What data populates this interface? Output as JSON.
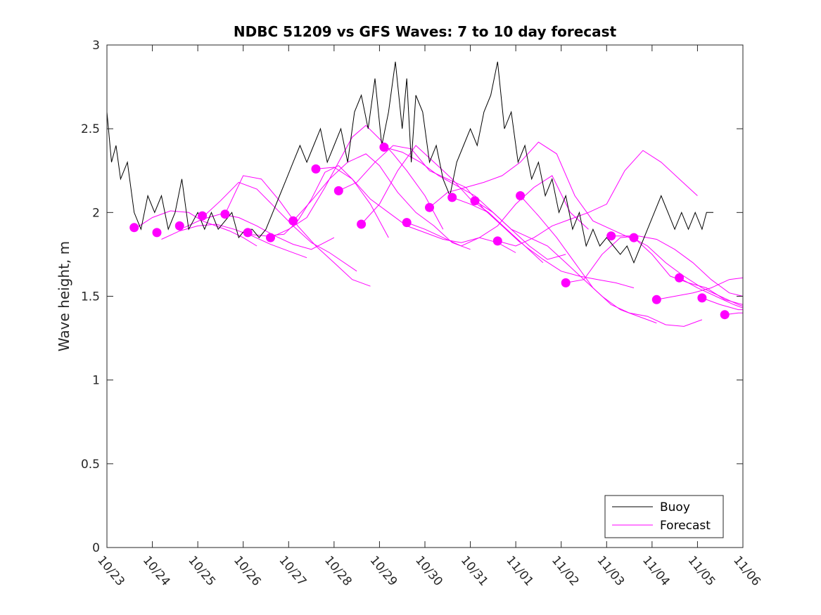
{
  "chart_data": {
    "type": "line",
    "title": "NDBC 51209 vs GFS Waves: 7 to 10 day forecast",
    "xlabel": "",
    "ylabel": "Wave height, m",
    "xlim": [
      0,
      14
    ],
    "ylim": [
      0,
      3
    ],
    "x_tick_labels": [
      "10/23",
      "10/24",
      "10/25",
      "10/26",
      "10/27",
      "10/28",
      "10/29",
      "10/30",
      "10/31",
      "11/01",
      "11/02",
      "11/03",
      "11/04",
      "11/05",
      "11/06"
    ],
    "y_ticks": [
      0,
      0.5,
      1,
      1.5,
      2,
      2.5,
      3
    ],
    "y_tick_labels": [
      "0",
      "0.5",
      "1",
      "1.5",
      "2",
      "2.5",
      "3"
    ],
    "colors": {
      "buoy": "#000000",
      "forecast": "#ff00ff"
    },
    "legend": {
      "position": "bottom-right",
      "entries": [
        "Buoy",
        "Forecast"
      ]
    },
    "series": [
      {
        "name": "Buoy",
        "x": [
          0,
          0.1,
          0.2,
          0.3,
          0.45,
          0.6,
          0.75,
          0.9,
          1.05,
          1.2,
          1.35,
          1.5,
          1.65,
          1.8,
          2.0,
          2.15,
          2.3,
          2.45,
          2.6,
          2.75,
          2.9,
          3.05,
          3.2,
          3.35,
          3.5,
          3.65,
          3.8,
          3.95,
          4.1,
          4.25,
          4.4,
          4.55,
          4.7,
          4.85,
          5.0,
          5.15,
          5.3,
          5.45,
          5.6,
          5.75,
          5.9,
          6.05,
          6.2,
          6.35,
          6.5,
          6.6,
          6.7,
          6.8,
          6.95,
          7.1,
          7.25,
          7.4,
          7.55,
          7.7,
          7.85,
          8.0,
          8.15,
          8.3,
          8.45,
          8.6,
          8.75,
          8.9,
          9.05,
          9.2,
          9.35,
          9.5,
          9.65,
          9.8,
          9.95,
          10.1,
          10.25,
          10.4,
          10.55,
          10.7,
          10.85,
          11.0,
          11.15,
          11.3,
          11.45,
          11.6,
          11.75,
          11.9,
          12.05,
          12.2,
          12.35,
          12.5,
          12.65,
          12.8,
          12.95,
          13.1,
          13.2,
          13.35
        ],
        "y": [
          2.6,
          2.3,
          2.4,
          2.2,
          2.3,
          2.0,
          1.9,
          2.1,
          2.0,
          2.1,
          1.9,
          2.0,
          2.2,
          1.9,
          2.0,
          1.9,
          2.0,
          1.9,
          1.95,
          2.0,
          1.85,
          1.9,
          1.9,
          1.85,
          1.9,
          2.0,
          2.1,
          2.2,
          2.3,
          2.4,
          2.3,
          2.4,
          2.5,
          2.3,
          2.4,
          2.5,
          2.3,
          2.6,
          2.7,
          2.5,
          2.8,
          2.4,
          2.6,
          2.9,
          2.5,
          2.8,
          2.3,
          2.7,
          2.6,
          2.3,
          2.4,
          2.2,
          2.1,
          2.3,
          2.4,
          2.5,
          2.4,
          2.6,
          2.7,
          2.9,
          2.5,
          2.6,
          2.3,
          2.4,
          2.2,
          2.3,
          2.1,
          2.2,
          2.0,
          2.1,
          1.9,
          2.0,
          1.8,
          1.9,
          1.8,
          1.85,
          1.8,
          1.75,
          1.8,
          1.7,
          1.8,
          1.9,
          2.0,
          2.1,
          2.0,
          1.9,
          2.0,
          1.9,
          2.0,
          1.9,
          2.0,
          2.0
        ]
      },
      {
        "name": "Forecast",
        "lines": [
          {
            "x": [
              0.6,
              1.0,
              1.4,
              1.8,
              2.1,
              2.4,
              2.7,
              3.0,
              3.3
            ],
            "y": [
              1.9,
              1.97,
              2.01,
              2.0,
              1.95,
              1.92,
              1.89,
              1.85,
              1.8
            ]
          },
          {
            "x": [
              1.2,
              1.6,
              2.0,
              2.4,
              2.8,
              3.2,
              3.6,
              4.0,
              4.4
            ],
            "y": [
              1.84,
              1.89,
              1.92,
              1.93,
              1.9,
              1.86,
              1.81,
              1.77,
              1.73
            ]
          },
          {
            "x": [
              1.7,
              2.1,
              2.5,
              2.9,
              3.3,
              3.7,
              4.1,
              4.5,
              5.0
            ],
            "y": [
              1.91,
              1.96,
              1.99,
              1.97,
              1.92,
              1.86,
              1.81,
              1.78,
              1.85
            ]
          },
          {
            "x": [
              2.1,
              2.5,
              2.9,
              3.3,
              3.7,
              4.1,
              4.5,
              4.9,
              5.5
            ],
            "y": [
              1.97,
              2.07,
              2.18,
              2.14,
              2.03,
              1.92,
              1.82,
              1.76,
              1.65
            ]
          },
          {
            "x": [
              2.6,
              3.0,
              3.4,
              3.8,
              4.2,
              4.6,
              5.0,
              5.4,
              5.8
            ],
            "y": [
              1.99,
              2.22,
              2.2,
              2.07,
              1.92,
              1.8,
              1.7,
              1.6,
              1.56
            ]
          },
          {
            "x": [
              3.1,
              3.5,
              3.9,
              4.2,
              4.5,
              4.8,
              5.1,
              5.4,
              5.8,
              6.2
            ],
            "y": [
              1.87,
              1.86,
              1.87,
              1.95,
              2.08,
              2.24,
              2.28,
              2.2,
              2.05,
              1.85
            ]
          },
          {
            "x": [
              3.6,
              4.0,
              4.4,
              4.8,
              5.1,
              5.4,
              5.7,
              6.0,
              6.3,
              6.6,
              7.0,
              7.4
            ],
            "y": [
              1.85,
              1.9,
              1.97,
              2.15,
              2.3,
              2.45,
              2.52,
              2.44,
              2.35,
              2.25,
              2.1,
              1.9
            ]
          },
          {
            "x": [
              4.1,
              4.5,
              4.9,
              5.3,
              5.7,
              6.0,
              6.4,
              6.8,
              7.2,
              7.6,
              8.0
            ],
            "y": [
              1.95,
              2.07,
              2.2,
              2.3,
              2.35,
              2.28,
              2.12,
              2.0,
              1.92,
              1.82,
              1.78
            ]
          },
          {
            "x": [
              4.6,
              5.0,
              5.4,
              5.8,
              6.2,
              6.6,
              7.0,
              7.4,
              7.8,
              8.2,
              8.6,
              9.0
            ],
            "y": [
              2.26,
              2.27,
              2.2,
              2.08,
              2.0,
              1.92,
              1.88,
              1.84,
              1.82,
              1.85,
              1.82,
              1.76
            ]
          },
          {
            "x": [
              5.1,
              5.5,
              5.9,
              6.3,
              6.7,
              7.1,
              7.5,
              7.9,
              8.3,
              8.7,
              9.1
            ],
            "y": [
              2.13,
              2.18,
              2.3,
              2.4,
              2.38,
              2.25,
              2.2,
              2.15,
              2.02,
              1.92,
              1.82
            ]
          },
          {
            "x": [
              5.6,
              6.0,
              6.4,
              6.8,
              7.2,
              7.6,
              8.0,
              8.4,
              8.8,
              9.2,
              9.6
            ],
            "y": [
              1.93,
              2.05,
              2.25,
              2.4,
              2.3,
              2.2,
              2.08,
              2.0,
              1.9,
              1.8,
              1.7
            ]
          },
          {
            "x": [
              6.1,
              6.5,
              6.9,
              7.3,
              7.7,
              8.1,
              8.5,
              8.9,
              9.3,
              9.7,
              10.1
            ],
            "y": [
              2.39,
              2.36,
              2.3,
              2.22,
              2.16,
              2.1,
              2.0,
              1.9,
              1.8,
              1.72,
              1.75
            ]
          },
          {
            "x": [
              6.6,
              7.0,
              7.4,
              7.8,
              8.2,
              8.6,
              9.0,
              9.4,
              9.8,
              10.2,
              10.6
            ],
            "y": [
              1.94,
              1.9,
              1.85,
              1.8,
              1.85,
              1.92,
              2.05,
              2.15,
              2.22,
              2.0,
              1.9
            ]
          },
          {
            "x": [
              7.1,
              7.5,
              7.9,
              8.3,
              8.7,
              9.1,
              9.5,
              9.9,
              10.3,
              10.7,
              11.1,
              11.5
            ],
            "y": [
              2.03,
              2.12,
              2.15,
              2.18,
              2.22,
              2.3,
              2.42,
              2.35,
              2.1,
              1.95,
              1.9,
              1.85
            ]
          },
          {
            "x": [
              7.6,
              8.0,
              8.4,
              8.8,
              9.2,
              9.6,
              10.0,
              10.4,
              10.8,
              11.2,
              11.6
            ],
            "y": [
              2.09,
              2.05,
              2.0,
              1.9,
              1.8,
              1.72,
              1.65,
              1.62,
              1.6,
              1.58,
              1.55
            ]
          },
          {
            "x": [
              8.1,
              8.5,
              8.9,
              9.3,
              9.7,
              10.1,
              10.5,
              10.9,
              11.3,
              11.7,
              12.1
            ],
            "y": [
              2.07,
              2.0,
              1.9,
              1.85,
              1.8,
              1.7,
              1.6,
              1.5,
              1.42,
              1.38,
              1.34
            ]
          },
          {
            "x": [
              8.6,
              9.0,
              9.4,
              9.8,
              10.2,
              10.6,
              11.0,
              11.4,
              11.8,
              12.2,
              12.6,
              13.0
            ],
            "y": [
              1.83,
              1.8,
              1.85,
              1.92,
              1.96,
              2.0,
              2.05,
              2.25,
              2.37,
              2.3,
              2.2,
              2.1
            ]
          },
          {
            "x": [
              9.1,
              9.5,
              9.9,
              10.3,
              10.7,
              11.1,
              11.5,
              11.9,
              12.3,
              12.7,
              13.1
            ],
            "y": [
              2.1,
              1.98,
              1.85,
              1.7,
              1.55,
              1.45,
              1.4,
              1.38,
              1.33,
              1.32,
              1.36
            ]
          },
          {
            "x": [
              10.1,
              10.5,
              10.9,
              11.3,
              11.7,
              12.1,
              12.5,
              12.9,
              13.3,
              13.7,
              14.0
            ],
            "y": [
              1.58,
              1.6,
              1.75,
              1.85,
              1.86,
              1.84,
              1.78,
              1.7,
              1.6,
              1.52,
              1.5
            ]
          },
          {
            "x": [
              11.1,
              11.5,
              11.9,
              12.3,
              12.7,
              13.1,
              13.5,
              13.9,
              14.0
            ],
            "y": [
              1.86,
              1.86,
              1.8,
              1.7,
              1.62,
              1.55,
              1.5,
              1.45,
              1.44
            ]
          },
          {
            "x": [
              11.6,
              12.0,
              12.4,
              12.8,
              13.2,
              13.6,
              14.0
            ],
            "y": [
              1.85,
              1.75,
              1.62,
              1.58,
              1.55,
              1.48,
              1.45
            ]
          },
          {
            "x": [
              12.1,
              12.5,
              12.9,
              13.3,
              13.7,
              14.0
            ],
            "y": [
              1.48,
              1.5,
              1.52,
              1.55,
              1.6,
              1.61
            ]
          },
          {
            "x": [
              12.6,
              13.0,
              13.4,
              13.8,
              14.0
            ],
            "y": [
              1.61,
              1.55,
              1.5,
              1.45,
              1.43
            ]
          },
          {
            "x": [
              13.1,
              13.5,
              13.9,
              14.0
            ],
            "y": [
              1.49,
              1.45,
              1.42,
              1.42
            ]
          },
          {
            "x": [
              13.6,
              13.9,
              14.0
            ],
            "y": [
              1.39,
              1.4,
              1.4
            ]
          }
        ],
        "markers": [
          {
            "x": 0.6,
            "y": 1.91
          },
          {
            "x": 1.1,
            "y": 1.88
          },
          {
            "x": 1.6,
            "y": 1.92
          },
          {
            "x": 2.1,
            "y": 1.98
          },
          {
            "x": 2.6,
            "y": 1.99
          },
          {
            "x": 3.1,
            "y": 1.88
          },
          {
            "x": 3.6,
            "y": 1.85
          },
          {
            "x": 4.1,
            "y": 1.95
          },
          {
            "x": 4.6,
            "y": 2.26
          },
          {
            "x": 5.1,
            "y": 2.13
          },
          {
            "x": 5.6,
            "y": 1.93
          },
          {
            "x": 6.1,
            "y": 2.39
          },
          {
            "x": 6.6,
            "y": 1.94
          },
          {
            "x": 7.1,
            "y": 2.03
          },
          {
            "x": 7.6,
            "y": 2.09
          },
          {
            "x": 8.1,
            "y": 2.07
          },
          {
            "x": 8.6,
            "y": 1.83
          },
          {
            "x": 9.1,
            "y": 2.1
          },
          {
            "x": 10.1,
            "y": 1.58
          },
          {
            "x": 11.1,
            "y": 1.86
          },
          {
            "x": 11.6,
            "y": 1.85
          },
          {
            "x": 12.1,
            "y": 1.48
          },
          {
            "x": 12.6,
            "y": 1.61
          },
          {
            "x": 13.1,
            "y": 1.49
          },
          {
            "x": 13.6,
            "y": 1.39
          }
        ]
      }
    ]
  }
}
